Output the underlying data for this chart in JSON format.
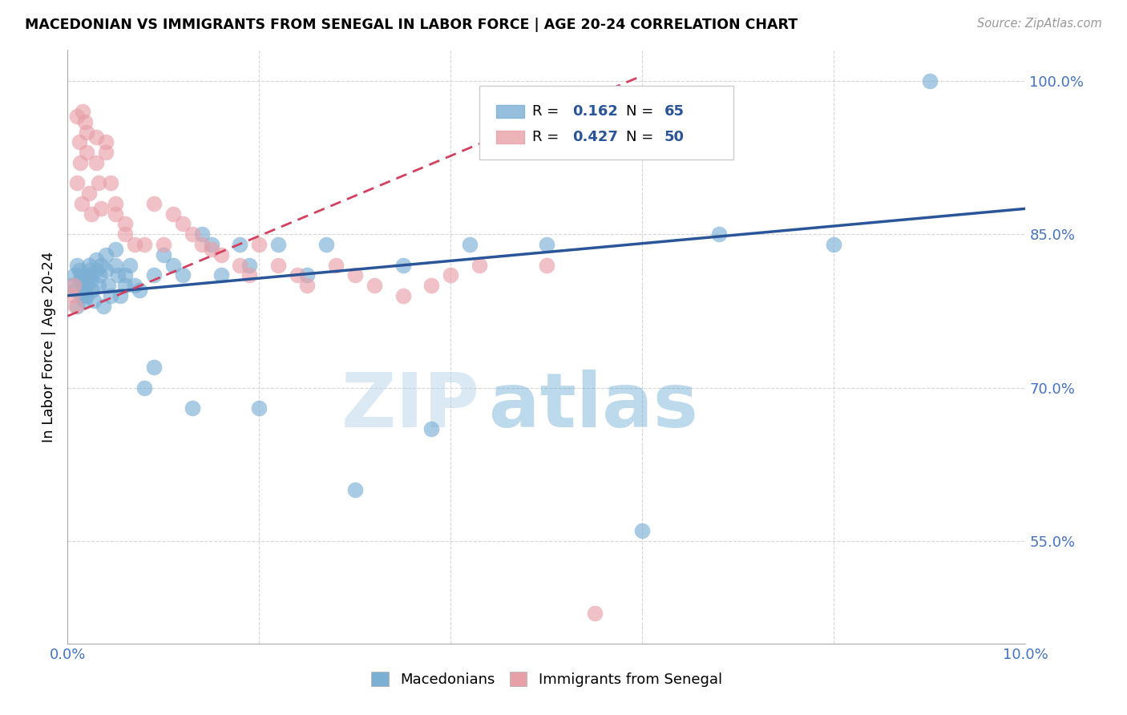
{
  "title": "MACEDONIAN VS IMMIGRANTS FROM SENEGAL IN LABOR FORCE | AGE 20-24 CORRELATION CHART",
  "source": "Source: ZipAtlas.com",
  "ylabel": "In Labor Force | Age 20-24",
  "x_min": 0.0,
  "x_max": 0.1,
  "y_min": 0.45,
  "y_max": 1.03,
  "y_tick_labels": [
    "55.0%",
    "70.0%",
    "85.0%",
    "100.0%"
  ],
  "y_tick_positions": [
    0.55,
    0.7,
    0.85,
    1.0
  ],
  "macedonian_color": "#7bafd4",
  "senegal_color": "#e8a0a8",
  "trendline_blue": "#2a5598",
  "trendline_pink": "#d44060",
  "watermark_zip": "ZIP",
  "watermark_atlas": "atlas",
  "legend_r1_val": "0.162",
  "legend_n1_val": "65",
  "legend_r2_val": "0.427",
  "legend_n2_val": "50",
  "mac_x": [
    0.0005,
    0.0007,
    0.0008,
    0.001,
    0.001,
    0.0012,
    0.0013,
    0.0014,
    0.0015,
    0.0016,
    0.0017,
    0.0018,
    0.002,
    0.002,
    0.002,
    0.0022,
    0.0023,
    0.0024,
    0.0025,
    0.0026,
    0.0027,
    0.003,
    0.003,
    0.0032,
    0.0033,
    0.0035,
    0.0037,
    0.004,
    0.004,
    0.0042,
    0.0045,
    0.005,
    0.005,
    0.0052,
    0.0055,
    0.006,
    0.006,
    0.0065,
    0.007,
    0.0075,
    0.008,
    0.009,
    0.009,
    0.01,
    0.011,
    0.012,
    0.013,
    0.014,
    0.015,
    0.016,
    0.018,
    0.019,
    0.02,
    0.022,
    0.025,
    0.027,
    0.03,
    0.035,
    0.038,
    0.042,
    0.05,
    0.06,
    0.068,
    0.08,
    0.09
  ],
  "mac_y": [
    0.8,
    0.81,
    0.795,
    0.82,
    0.78,
    0.815,
    0.805,
    0.81,
    0.79,
    0.8,
    0.785,
    0.795,
    0.81,
    0.8,
    0.79,
    0.82,
    0.815,
    0.805,
    0.81,
    0.795,
    0.785,
    0.825,
    0.815,
    0.8,
    0.81,
    0.82,
    0.78,
    0.83,
    0.815,
    0.8,
    0.79,
    0.835,
    0.82,
    0.81,
    0.79,
    0.81,
    0.8,
    0.82,
    0.8,
    0.795,
    0.7,
    0.81,
    0.72,
    0.83,
    0.82,
    0.81,
    0.68,
    0.85,
    0.84,
    0.81,
    0.84,
    0.82,
    0.68,
    0.84,
    0.81,
    0.84,
    0.6,
    0.82,
    0.66,
    0.84,
    0.84,
    0.56,
    0.85,
    0.84,
    1.0
  ],
  "sen_x": [
    0.0005,
    0.0006,
    0.0008,
    0.001,
    0.001,
    0.0012,
    0.0013,
    0.0015,
    0.0016,
    0.0018,
    0.002,
    0.002,
    0.0022,
    0.0025,
    0.003,
    0.003,
    0.0032,
    0.0035,
    0.004,
    0.004,
    0.0045,
    0.005,
    0.005,
    0.006,
    0.006,
    0.007,
    0.008,
    0.009,
    0.01,
    0.011,
    0.012,
    0.013,
    0.014,
    0.015,
    0.016,
    0.018,
    0.019,
    0.02,
    0.022,
    0.024,
    0.025,
    0.028,
    0.03,
    0.032,
    0.035,
    0.038,
    0.04,
    0.043,
    0.05,
    0.055
  ],
  "sen_y": [
    0.79,
    0.8,
    0.78,
    0.965,
    0.9,
    0.94,
    0.92,
    0.88,
    0.97,
    0.96,
    0.95,
    0.93,
    0.89,
    0.87,
    0.945,
    0.92,
    0.9,
    0.875,
    0.94,
    0.93,
    0.9,
    0.88,
    0.87,
    0.86,
    0.85,
    0.84,
    0.84,
    0.88,
    0.84,
    0.87,
    0.86,
    0.85,
    0.84,
    0.835,
    0.83,
    0.82,
    0.81,
    0.84,
    0.82,
    0.81,
    0.8,
    0.82,
    0.81,
    0.8,
    0.79,
    0.8,
    0.81,
    0.82,
    0.82,
    0.48
  ],
  "blue_trend_x": [
    0.0,
    0.1
  ],
  "blue_trend_y": [
    0.79,
    0.875
  ],
  "pink_trend_x": [
    0.0,
    0.06
  ],
  "pink_trend_y": [
    0.77,
    1.005
  ]
}
